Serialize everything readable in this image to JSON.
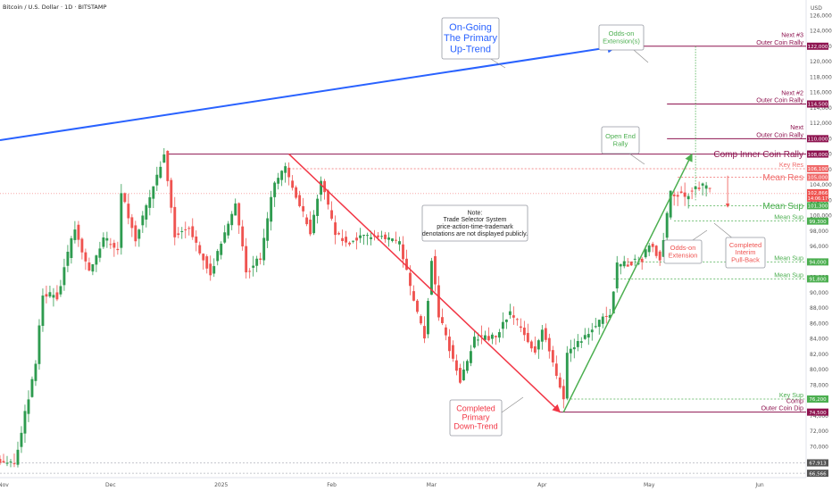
{
  "header": {
    "title": "Bitcoin / U.S. Dollar · 1D · BITSTAMP",
    "currency": "USD"
  },
  "chart_data": {
    "type": "candlestick",
    "symbol": "Bitcoin / U.S. Dollar",
    "timeframe": "1D",
    "exchange": "BITSTAMP",
    "ylim": [
      66000,
      128000
    ],
    "y_ticks": [
      70000,
      72000,
      74000,
      76000,
      78000,
      80000,
      82000,
      84000,
      86000,
      88000,
      90000,
      92000,
      94000,
      96000,
      98000,
      100000,
      102000,
      104000,
      106000,
      108000,
      110000,
      112000,
      114000,
      116000,
      118000,
      120000,
      122000,
      124000,
      126000
    ],
    "y_tick_labels": [
      "70,000",
      "72,000",
      "74,000",
      "76,000",
      "78,000",
      "80,000",
      "82,000",
      "84,000",
      "86,000",
      "88,000",
      "90,000",
      "92,000",
      "94,000",
      "96,000",
      "98,000",
      "100,000",
      "102,000",
      "104,000",
      "106,000",
      "108,000",
      "110,000",
      "112,000",
      "114,000",
      "116,000",
      "118,000",
      "120,000",
      "122,000",
      "124,000",
      "126,000"
    ],
    "x_range": [
      "2024-10-31",
      "2025-06-14"
    ],
    "x_ticks": [
      {
        "date": "2024-11-01",
        "label": "Nov"
      },
      {
        "date": "2024-12-01",
        "label": "Dec"
      },
      {
        "date": "2025-01-01",
        "label": "2025"
      },
      {
        "date": "2025-02-01",
        "label": "Feb"
      },
      {
        "date": "2025-03-01",
        "label": "Mar"
      },
      {
        "date": "2025-04-01",
        "label": "Apr"
      },
      {
        "date": "2025-05-01",
        "label": "May"
      },
      {
        "date": "2025-06-01",
        "label": "Jun"
      }
    ],
    "price_path": [
      [
        "2024-10-31",
        68500
      ],
      [
        "2024-11-05",
        67800
      ],
      [
        "2024-11-07",
        72000
      ],
      [
        "2024-11-11",
        81000
      ],
      [
        "2024-11-13",
        90000
      ],
      [
        "2024-11-17",
        89500
      ],
      [
        "2024-11-22",
        98500
      ],
      [
        "2024-11-26",
        92500
      ],
      [
        "2024-11-30",
        97000
      ],
      [
        "2024-12-04",
        95800
      ],
      [
        "2024-12-05",
        103000
      ],
      [
        "2024-12-09",
        97000
      ],
      [
        "2024-12-12",
        101000
      ],
      [
        "2024-12-16",
        106500
      ],
      [
        "2024-12-17",
        108300
      ],
      [
        "2024-12-20",
        97500
      ],
      [
        "2024-12-24",
        98500
      ],
      [
        "2024-12-30",
        92500
      ],
      [
        "2025-01-06",
        101500
      ],
      [
        "2025-01-09",
        92700
      ],
      [
        "2025-01-13",
        94500
      ],
      [
        "2025-01-17",
        104500
      ],
      [
        "2025-01-20",
        106000
      ],
      [
        "2025-01-22",
        103500
      ],
      [
        "2025-01-27",
        98000
      ],
      [
        "2025-01-30",
        104700
      ],
      [
        "2025-02-03",
        97500
      ],
      [
        "2025-02-06",
        96500
      ],
      [
        "2025-02-14",
        97500
      ],
      [
        "2025-02-21",
        96500
      ],
      [
        "2025-02-25",
        88600
      ],
      [
        "2025-02-28",
        84300
      ],
      [
        "2025-03-02",
        94300
      ],
      [
        "2025-03-04",
        87000
      ],
      [
        "2025-03-10",
        78600
      ],
      [
        "2025-03-14",
        84000
      ],
      [
        "2025-03-20",
        84200
      ],
      [
        "2025-03-24",
        87500
      ],
      [
        "2025-03-31",
        82500
      ],
      [
        "2025-04-02",
        85200
      ],
      [
        "2025-04-08",
        76300
      ],
      [
        "2025-04-09",
        82500
      ],
      [
        "2025-04-14",
        84500
      ],
      [
        "2025-04-21",
        87500
      ],
      [
        "2025-04-23",
        93500
      ],
      [
        "2025-04-30",
        94200
      ],
      [
        "2025-05-02",
        96500
      ],
      [
        "2025-05-05",
        94300
      ],
      [
        "2025-05-08",
        103000
      ],
      [
        "2025-05-12",
        102500
      ],
      [
        "2025-05-15",
        103600
      ],
      [
        "2025-05-18",
        103800
      ]
    ],
    "price_range": {
      "low": 66566,
      "high": 108300
    },
    "last_price": "102,866",
    "countdown": "14:06:17",
    "levels": [
      {
        "label": "Next #3\nOuter Coin Rally",
        "value": 122000,
        "badge": "122,000",
        "color": "#8e1450"
      },
      {
        "label": "Next #2\nOuter Coin Rally",
        "value": 114500,
        "badge": "114,500",
        "color": "#8e1450"
      },
      {
        "label": "Next\nOuter Coin Rally",
        "value": 110000,
        "badge": "110,000",
        "color": "#8e1450"
      },
      {
        "label": "Comp Inner Coin Rally",
        "value": 108000,
        "badge": "108,000",
        "color": "#8e1450"
      },
      {
        "label": "Key Res",
        "value": 106100,
        "badge": "106,100",
        "color": "#f06b6b"
      },
      {
        "label": "Mean Res",
        "value": 105000,
        "badge": "105,000",
        "color": "#f06b6b"
      },
      {
        "label": "Mean Sup",
        "value": 101300,
        "badge": "101,300",
        "color": "#4caf50"
      },
      {
        "label": "Mean Sup",
        "value": 99300,
        "badge": "99,300",
        "color": "#4caf50"
      },
      {
        "label": "Mean Sup",
        "value": 94000,
        "badge": "94,000",
        "color": "#4caf50"
      },
      {
        "label": "Mean Sup",
        "value": 91800,
        "badge": "91,800",
        "color": "#4caf50"
      },
      {
        "label": "Key Sup",
        "value": 76200,
        "badge": "76,200",
        "color": "#4caf50"
      },
      {
        "label": "Comp\nOuter Coin Dip",
        "value": 74500,
        "badge": "74,500",
        "color": "#8e1450"
      },
      {
        "label": "",
        "value": 67913,
        "badge": "67,913",
        "color": "#555555"
      },
      {
        "label": "",
        "value": 66566,
        "badge": "66,566",
        "color": "#555555"
      }
    ],
    "annotations": {
      "primary_uptrend": "On-Going\nThe Primary\nUp-Trend",
      "odds_on_extension_top": "Odds-on\nExtension(s)",
      "open_end_rally": "Open End\nRally",
      "note": "Note:\nTrade Selector System\nprice-action-time-trademark\ndenotations are not displayed publicly.",
      "completed_downtrend": "Completed\nPrimary\nDown-Trend",
      "odds_on_extension": "Odds-on\nExtension",
      "completed_pullback": "Completed\nInterim\nPull-Back"
    },
    "colors": {
      "up": "#26a69a",
      "up_fill": "#2e9b4f",
      "down": "#ef5350",
      "uptrend_line": "#2962ff",
      "downtrend_line": "#f23645",
      "rally_line": "#4caf50"
    },
    "grid": false,
    "legend": "none"
  }
}
